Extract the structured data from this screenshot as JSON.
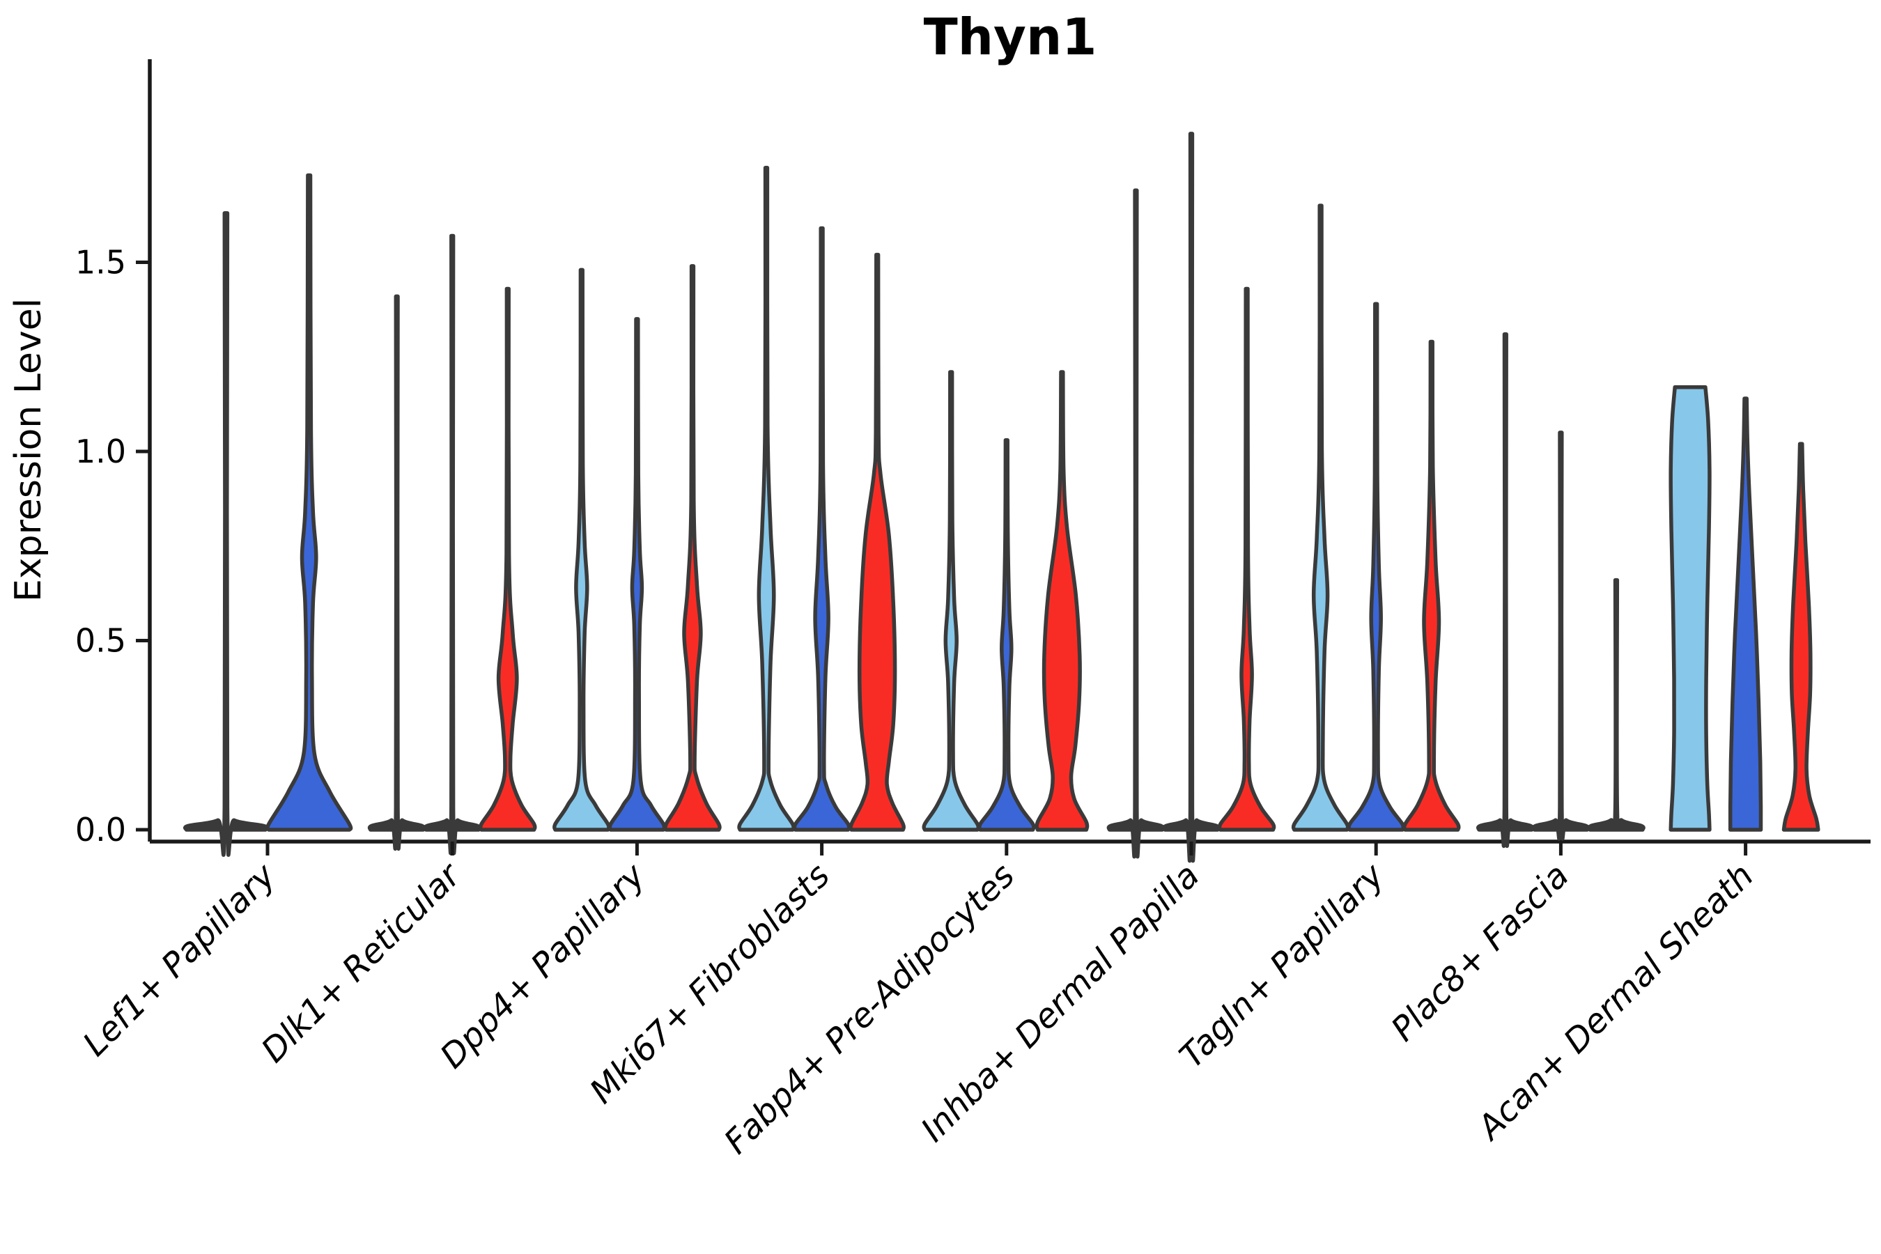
{
  "chart_data": {
    "type": "violin",
    "title": "Thyn1",
    "xlabel": "",
    "ylabel": "Expression Level",
    "yticks": [
      "0.0",
      "0.5",
      "1.0",
      "1.5"
    ],
    "ytick_values": [
      0.0,
      0.5,
      1.0,
      1.5
    ],
    "ylim": [
      -0.03,
      2.03
    ],
    "grid": false,
    "legend": "none",
    "palette": {
      "light_blue": "#87C7E9",
      "dark_blue": "#3B66D7",
      "red": "#F92C25",
      "outline": "#3A3A3A",
      "axis": "#1a1a1a"
    },
    "groups": [
      {
        "label": "Lef1+ Papillary",
        "violins": [
          {
            "split": "light_blue",
            "kind": "needle",
            "max": 1.63
          },
          {
            "split": "dark_blue",
            "kind": "violin",
            "max": 1.73,
            "profile": [
              [
                1.73,
                0.03
              ],
              [
                1.06,
                0.045
              ],
              [
                0.84,
                0.095
              ],
              [
                0.72,
                0.17
              ],
              [
                0.6,
                0.095
              ],
              [
                0.4,
                0.07
              ],
              [
                0.2,
                0.13
              ],
              [
                0.1,
                0.5
              ],
              [
                0.015,
                0.97
              ],
              [
                0,
                0.97
              ]
            ]
          }
        ]
      },
      {
        "label": "Dlk1+ Reticular",
        "violins": [
          {
            "split": "light_blue",
            "kind": "needle",
            "max": 1.41
          },
          {
            "split": "dark_blue",
            "kind": "needle",
            "max": 1.57
          },
          {
            "split": "red",
            "kind": "violin",
            "max": 1.43,
            "profile": [
              [
                1.43,
                0.035
              ],
              [
                0.73,
                0.045
              ],
              [
                0.52,
                0.18
              ],
              [
                0.4,
                0.33
              ],
              [
                0.28,
                0.18
              ],
              [
                0.19,
                0.1
              ],
              [
                0.13,
                0.15
              ],
              [
                0.065,
                0.5
              ],
              [
                0.015,
                0.95
              ],
              [
                0,
                0.95
              ]
            ]
          }
        ]
      },
      {
        "label": "Dpp4+ Papillary",
        "violins": [
          {
            "split": "light_blue",
            "kind": "violin",
            "max": 1.48,
            "profile": [
              [
                1.48,
                0.035
              ],
              [
                0.97,
                0.045
              ],
              [
                0.76,
                0.11
              ],
              [
                0.64,
                0.2
              ],
              [
                0.52,
                0.11
              ],
              [
                0.33,
                0.07
              ],
              [
                0.13,
                0.13
              ],
              [
                0.065,
                0.5
              ],
              [
                0.015,
                0.95
              ],
              [
                0,
                0.95
              ]
            ]
          },
          {
            "split": "dark_blue",
            "kind": "violin",
            "max": 1.35,
            "profile": [
              [
                1.35,
                0.035
              ],
              [
                0.94,
                0.045
              ],
              [
                0.74,
                0.1
              ],
              [
                0.64,
                0.175
              ],
              [
                0.54,
                0.1
              ],
              [
                0.36,
                0.07
              ],
              [
                0.13,
                0.13
              ],
              [
                0.065,
                0.5
              ],
              [
                0.015,
                0.95
              ],
              [
                0,
                0.95
              ]
            ]
          },
          {
            "split": "red",
            "kind": "violin",
            "max": 1.49,
            "profile": [
              [
                1.49,
                0.035
              ],
              [
                0.87,
                0.045
              ],
              [
                0.645,
                0.165
              ],
              [
                0.52,
                0.3
              ],
              [
                0.395,
                0.165
              ],
              [
                0.19,
                0.08
              ],
              [
                0.14,
                0.14
              ],
              [
                0.07,
                0.5
              ],
              [
                0.015,
                0.95
              ],
              [
                0,
                0.95
              ]
            ]
          }
        ]
      },
      {
        "label": "Mki67+ Fibroblasts",
        "violins": [
          {
            "split": "light_blue",
            "kind": "violin",
            "max": 1.75,
            "profile": [
              [
                1.75,
                0.035
              ],
              [
                1.07,
                0.045
              ],
              [
                0.8,
                0.15
              ],
              [
                0.62,
                0.27
              ],
              [
                0.44,
                0.15
              ],
              [
                0.19,
                0.08
              ],
              [
                0.13,
                0.14
              ],
              [
                0.065,
                0.5
              ],
              [
                0.015,
                0.95
              ],
              [
                0,
                0.95
              ]
            ]
          },
          {
            "split": "dark_blue",
            "kind": "violin",
            "max": 1.59,
            "profile": [
              [
                1.59,
                0.035
              ],
              [
                0.97,
                0.045
              ],
              [
                0.72,
                0.13
              ],
              [
                0.56,
                0.24
              ],
              [
                0.4,
                0.13
              ],
              [
                0.17,
                0.08
              ],
              [
                0.12,
                0.15
              ],
              [
                0.06,
                0.5
              ],
              [
                0.015,
                0.95
              ],
              [
                0,
                0.95
              ]
            ]
          },
          {
            "split": "red",
            "kind": "violin",
            "max": 1.52,
            "profile": [
              [
                1.52,
                0.035
              ],
              [
                1.05,
                0.05
              ],
              [
                0.94,
                0.12
              ],
              [
                0.78,
                0.42
              ],
              [
                0.6,
                0.58
              ],
              [
                0.42,
                0.64
              ],
              [
                0.28,
                0.58
              ],
              [
                0.18,
                0.42
              ],
              [
                0.12,
                0.35
              ],
              [
                0.07,
                0.55
              ],
              [
                0.015,
                0.93
              ],
              [
                0,
                0.93
              ]
            ]
          }
        ]
      },
      {
        "label": "Fabp4+ Pre-Adipocytes",
        "violins": [
          {
            "split": "light_blue",
            "kind": "violin",
            "max": 1.21,
            "profile": [
              [
                1.21,
                0.035
              ],
              [
                0.82,
                0.045
              ],
              [
                0.61,
                0.11
              ],
              [
                0.5,
                0.2
              ],
              [
                0.39,
                0.11
              ],
              [
                0.21,
                0.07
              ],
              [
                0.13,
                0.13
              ],
              [
                0.065,
                0.5
              ],
              [
                0.015,
                0.95
              ],
              [
                0,
                0.95
              ]
            ]
          },
          {
            "split": "dark_blue",
            "kind": "violin",
            "max": 1.03,
            "profile": [
              [
                1.03,
                0.035
              ],
              [
                0.79,
                0.045
              ],
              [
                0.585,
                0.1
              ],
              [
                0.48,
                0.175
              ],
              [
                0.375,
                0.1
              ],
              [
                0.2,
                0.07
              ],
              [
                0.12,
                0.13
              ],
              [
                0.06,
                0.5
              ],
              [
                0.015,
                0.95
              ],
              [
                0,
                0.95
              ]
            ]
          },
          {
            "split": "red",
            "kind": "violin",
            "max": 1.21,
            "profile": [
              [
                1.21,
                0.035
              ],
              [
                0.95,
                0.06
              ],
              [
                0.8,
                0.18
              ],
              [
                0.62,
                0.5
              ],
              [
                0.46,
                0.64
              ],
              [
                0.34,
                0.62
              ],
              [
                0.22,
                0.48
              ],
              [
                0.14,
                0.33
              ],
              [
                0.08,
                0.45
              ],
              [
                0.02,
                0.88
              ],
              [
                0,
                0.88
              ]
            ]
          }
        ]
      },
      {
        "label": "Inhba+ Dermal Papilla",
        "violins": [
          {
            "split": "light_blue",
            "kind": "needle",
            "max": 1.69
          },
          {
            "split": "dark_blue",
            "kind": "needle",
            "max": 1.84
          },
          {
            "split": "red",
            "kind": "violin",
            "max": 1.43,
            "profile": [
              [
                1.43,
                0.035
              ],
              [
                0.75,
                0.045
              ],
              [
                0.53,
                0.105
              ],
              [
                0.41,
                0.19
              ],
              [
                0.29,
                0.105
              ],
              [
                0.18,
                0.08
              ],
              [
                0.12,
                0.14
              ],
              [
                0.06,
                0.5
              ],
              [
                0.015,
                0.95
              ],
              [
                0,
                0.95
              ]
            ]
          }
        ]
      },
      {
        "label": "Tagln+ Papillary",
        "violins": [
          {
            "split": "light_blue",
            "kind": "violin",
            "max": 1.65,
            "profile": [
              [
                1.65,
                0.035
              ],
              [
                1.01,
                0.045
              ],
              [
                0.77,
                0.14
              ],
              [
                0.62,
                0.25
              ],
              [
                0.47,
                0.14
              ],
              [
                0.22,
                0.08
              ],
              [
                0.13,
                0.13
              ],
              [
                0.065,
                0.5
              ],
              [
                0.015,
                0.95
              ],
              [
                0,
                0.95
              ]
            ]
          },
          {
            "split": "dark_blue",
            "kind": "violin",
            "max": 1.39,
            "profile": [
              [
                1.39,
                0.035
              ],
              [
                0.94,
                0.045
              ],
              [
                0.7,
                0.1
              ],
              [
                0.56,
                0.175
              ],
              [
                0.42,
                0.1
              ],
              [
                0.2,
                0.07
              ],
              [
                0.12,
                0.13
              ],
              [
                0.06,
                0.5
              ],
              [
                0.015,
                0.95
              ],
              [
                0,
                0.95
              ]
            ]
          },
          {
            "split": "red",
            "kind": "violin",
            "max": 1.29,
            "profile": [
              [
                1.29,
                0.035
              ],
              [
                0.96,
                0.05
              ],
              [
                0.71,
                0.15
              ],
              [
                0.55,
                0.27
              ],
              [
                0.39,
                0.15
              ],
              [
                0.19,
                0.09
              ],
              [
                0.13,
                0.14
              ],
              [
                0.065,
                0.5
              ],
              [
                0.015,
                0.95
              ],
              [
                0,
                0.95
              ]
            ]
          }
        ]
      },
      {
        "label": "Plac8+ Fascia",
        "violins": [
          {
            "split": "light_blue",
            "kind": "needle",
            "max": 1.31
          },
          {
            "split": "dark_blue",
            "kind": "needle",
            "max": 1.05
          },
          {
            "split": "red",
            "kind": "needle",
            "max": 0.66
          }
        ]
      },
      {
        "label": "Acan+ Dermal Sheath",
        "violins": [
          {
            "split": "light_blue",
            "kind": "violin",
            "max": 1.17,
            "profile": [
              [
                1.17,
                0.55
              ],
              [
                1.08,
                0.65
              ],
              [
                0.95,
                0.7
              ],
              [
                0.8,
                0.68
              ],
              [
                0.6,
                0.62
              ],
              [
                0.4,
                0.58
              ],
              [
                0.25,
                0.58
              ],
              [
                0.12,
                0.62
              ],
              [
                0.04,
                0.68
              ],
              [
                0,
                0.7
              ]
            ]
          },
          {
            "split": "dark_blue",
            "kind": "violin",
            "max": 1.14,
            "profile": [
              [
                1.14,
                0.04
              ],
              [
                1.02,
                0.07
              ],
              [
                0.88,
                0.14
              ],
              [
                0.7,
                0.26
              ],
              [
                0.52,
                0.38
              ],
              [
                0.34,
                0.47
              ],
              [
                0.18,
                0.53
              ],
              [
                0.06,
                0.55
              ],
              [
                0,
                0.55
              ]
            ]
          },
          {
            "split": "red",
            "kind": "violin",
            "max": 1.02,
            "profile": [
              [
                1.02,
                0.04
              ],
              [
                0.9,
                0.08
              ],
              [
                0.76,
                0.16
              ],
              [
                0.6,
                0.28
              ],
              [
                0.47,
                0.34
              ],
              [
                0.36,
                0.33
              ],
              [
                0.26,
                0.25
              ],
              [
                0.16,
                0.2
              ],
              [
                0.09,
                0.3
              ],
              [
                0.03,
                0.55
              ],
              [
                0,
                0.62
              ]
            ]
          }
        ]
      }
    ]
  }
}
